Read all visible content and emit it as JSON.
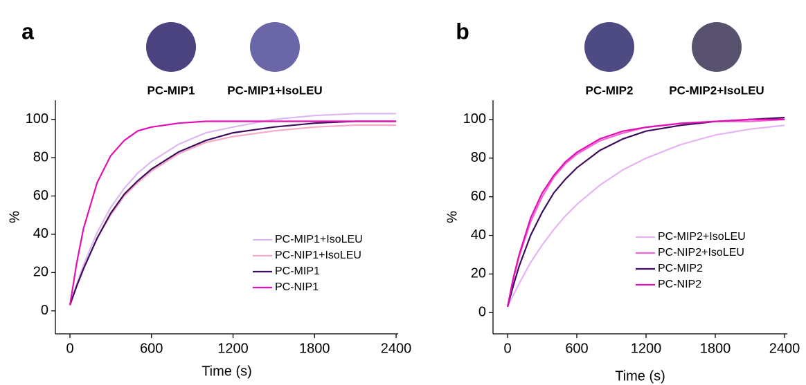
{
  "chart_data": [
    {
      "type": "line",
      "label": "a",
      "image_labels": [
        "PC-MIP1",
        "PC-MIP1+IsoLEU"
      ],
      "x_label": "Time (s)",
      "y_label": "%",
      "x": [
        0,
        50,
        100,
        200,
        300,
        400,
        500,
        600,
        800,
        1000,
        1200,
        1500,
        1800,
        2100,
        2400
      ],
      "series": [
        {
          "name": "PC-MIP1+IsoLEU",
          "color": "#dcb8f2",
          "values": [
            3,
            14,
            24,
            41,
            54,
            64,
            72,
            78,
            87,
            93,
            96,
            100,
            102,
            103,
            103
          ]
        },
        {
          "name": "PC-NIP1+IsoLEU",
          "color": "#f7a8c8",
          "values": [
            3,
            13,
            22,
            38,
            50,
            60,
            67,
            73,
            82,
            88,
            91,
            94,
            96,
            97,
            97
          ]
        },
        {
          "name": "PC-MIP1",
          "color": "#3d0b5c",
          "values": [
            3,
            13,
            22,
            38,
            51,
            61,
            68,
            74,
            83,
            89,
            93,
            96,
            98,
            99,
            99
          ]
        },
        {
          "name": "PC-NIP1",
          "color": "#e010b4",
          "values": [
            3,
            25,
            43,
            67,
            81,
            89,
            94,
            96,
            98,
            99,
            99,
            99,
            99,
            99,
            99
          ]
        }
      ],
      "xlim": [
        -107,
        2415
      ],
      "ylim": [
        -12,
        110
      ],
      "xticks": [
        0,
        600,
        1200,
        1800,
        2400
      ],
      "yticks": [
        0,
        20,
        40,
        60,
        80,
        100
      ],
      "grid": false
    },
    {
      "type": "line",
      "label": "b",
      "image_labels": [
        "PC-MIP2",
        "PC-MIP2+IsoLEU"
      ],
      "x_label": "Time (s)",
      "y_label": "%",
      "x": [
        0,
        50,
        100,
        200,
        300,
        400,
        500,
        600,
        800,
        1000,
        1200,
        1500,
        1800,
        2100,
        2400
      ],
      "series": [
        {
          "name": "PC-MIP2+IsoLEU",
          "color": "#e6b4f4",
          "values": [
            3,
            9,
            15,
            26,
            35,
            43,
            50,
            56,
            66,
            74,
            80,
            87,
            92,
            95,
            97
          ]
        },
        {
          "name": "PC-NIP2+IsoLEU",
          "color": "#f064d4",
          "values": [
            3,
            17,
            29,
            47,
            60,
            70,
            77,
            82,
            89,
            93,
            96,
            98,
            99,
            99,
            100
          ]
        },
        {
          "name": "PC-MIP2",
          "color": "#3d0b5c",
          "values": [
            3,
            14,
            24,
            40,
            52,
            62,
            69,
            75,
            84,
            90,
            94,
            97,
            99,
            100,
            101
          ]
        },
        {
          "name": "PC-NIP2",
          "color": "#e010b4",
          "values": [
            3,
            18,
            30,
            49,
            62,
            71,
            78,
            83,
            90,
            94,
            96,
            98,
            99,
            100,
            100
          ]
        }
      ],
      "xlim": [
        -126,
        2424
      ],
      "ylim": [
        -11,
        110
      ],
      "xticks": [
        0,
        600,
        1200,
        1800,
        2400
      ],
      "yticks": [
        0,
        20,
        40,
        60,
        80,
        100
      ],
      "grid": false
    }
  ]
}
